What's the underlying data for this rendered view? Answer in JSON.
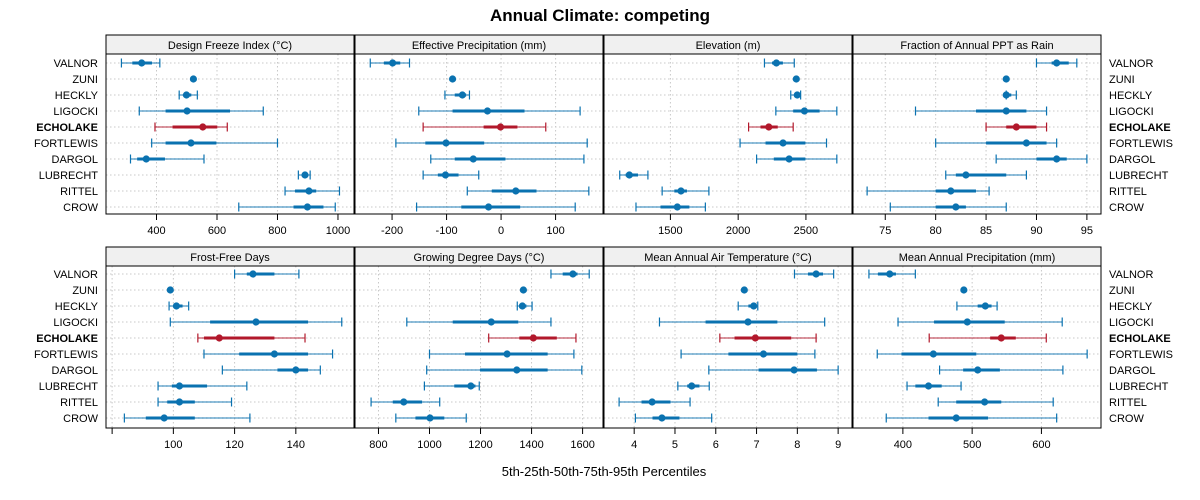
{
  "chart_data": {
    "type": "dotplot-percentiles",
    "title": "Annual Climate: competing",
    "xlabel": "5th-25th-50th-75th-95th Percentiles",
    "sites": [
      "VALNOR",
      "ZUNI",
      "HECKLY",
      "LIGOCKI",
      "ECHOLAKE",
      "FORTLEWIS",
      "DARGOL",
      "LUBRECHT",
      "RITTEL",
      "CROW"
    ],
    "highlight_site": "ECHOLAKE",
    "colors": {
      "default": "#0a72b0",
      "highlight": "#b2182b",
      "strip_fill": "#f0f0f0",
      "grid": "#c8c8c8"
    },
    "grid": true,
    "stat_order": [
      "p5",
      "p25",
      "p50",
      "p75",
      "p95"
    ],
    "panels": [
      {
        "title": "Design Freeze Index (°C)",
        "xlim": [
          233,
          1053
        ],
        "ticks": [
          400,
          600,
          800,
          1000
        ],
        "tick_labels": [
          "400",
          "600",
          "800",
          "1000"
        ],
        "values": [
          [
            284,
            320,
            351,
            385,
            411
          ],
          [
            522,
            522,
            522,
            522,
            522
          ],
          [
            475,
            490,
            499,
            515,
            535
          ],
          [
            343,
            430,
            501,
            643,
            753
          ],
          [
            395,
            453,
            553,
            601,
            634
          ],
          [
            384,
            430,
            514,
            598,
            800
          ],
          [
            314,
            336,
            366,
            428,
            557
          ],
          [
            869,
            883,
            891,
            898,
            908
          ],
          [
            825,
            858,
            904,
            928,
            1005
          ],
          [
            672,
            853,
            899,
            952,
            991
          ]
        ]
      },
      {
        "title": "Effective Precipitation (mm)",
        "xlim": [
          -268,
          187
        ],
        "ticks": [
          -200,
          -100,
          0,
          100
        ],
        "tick_labels": [
          "-200",
          "-100",
          "0",
          "100"
        ],
        "values": [
          [
            -240,
            -215,
            -199,
            -185,
            -168
          ],
          [
            -89,
            -89,
            -89,
            -89,
            -89
          ],
          [
            -103,
            -85,
            -71,
            -64,
            -58
          ],
          [
            -151,
            -89,
            -25,
            43,
            145
          ],
          [
            -143,
            -32,
            -1,
            30,
            82
          ],
          [
            -193,
            -139,
            -101,
            -31,
            158
          ],
          [
            -129,
            -85,
            -51,
            8,
            152
          ],
          [
            -143,
            -116,
            -102,
            -78,
            -41
          ],
          [
            -62,
            -17,
            27,
            65,
            161
          ],
          [
            -155,
            -73,
            -23,
            35,
            136
          ]
        ]
      },
      {
        "title": "Elevation (m)",
        "xlim": [
          1010,
          2840
        ],
        "ticks": [
          1500,
          2000,
          2500
        ],
        "tick_labels": [
          "1500",
          "2000",
          "2500"
        ],
        "values": [
          [
            2194,
            2250,
            2282,
            2330,
            2414
          ],
          [
            2429,
            2429,
            2429,
            2429,
            2429
          ],
          [
            2388,
            2420,
            2436,
            2448,
            2461
          ],
          [
            2278,
            2406,
            2489,
            2601,
            2728
          ],
          [
            2077,
            2165,
            2226,
            2292,
            2406
          ],
          [
            2014,
            2202,
            2331,
            2496,
            2652
          ],
          [
            2136,
            2263,
            2376,
            2496,
            2728
          ],
          [
            1126,
            1170,
            1197,
            1261,
            1334
          ],
          [
            1439,
            1529,
            1578,
            1622,
            1784
          ],
          [
            1246,
            1427,
            1551,
            1640,
            1758
          ]
        ]
      },
      {
        "title": "Fraction of Annual PPT as Rain",
        "xlim": [
          71.8,
          96.4
        ],
        "ticks": [
          75,
          80,
          85,
          90,
          95
        ],
        "tick_labels": [
          "75",
          "80",
          "85",
          "90",
          "95"
        ],
        "values": [
          [
            90,
            91.5,
            92,
            93.2,
            94
          ],
          [
            87,
            87,
            87,
            87,
            87
          ],
          [
            87,
            87,
            87,
            87.5,
            88
          ],
          [
            78,
            84,
            87,
            89,
            91
          ],
          [
            85,
            87,
            88,
            90,
            91
          ],
          [
            80,
            85,
            89,
            91,
            92
          ],
          [
            86,
            90,
            92,
            93,
            95
          ],
          [
            81,
            82,
            83,
            87,
            89
          ],
          [
            73.2,
            80,
            81.5,
            84,
            85.3
          ],
          [
            75.5,
            80,
            82,
            83,
            87
          ]
        ]
      },
      {
        "title": "Frost-Free Days",
        "xlim": [
          78,
          159
        ],
        "ticks": [
          80,
          100,
          120,
          140
        ],
        "tick_labels": [
          "",
          "100",
          "120",
          "140"
        ],
        "values": [
          [
            120,
            124,
            126,
            133,
            141
          ],
          [
            99,
            99,
            99,
            99,
            99
          ],
          [
            98.6,
            100,
            101,
            103,
            105
          ],
          [
            99,
            112,
            127,
            144,
            155
          ],
          [
            108,
            110,
            115,
            133,
            143
          ],
          [
            110,
            121.5,
            133,
            144,
            152
          ],
          [
            116,
            134,
            140,
            144,
            148
          ],
          [
            95,
            99.5,
            102,
            111,
            124
          ],
          [
            95,
            98,
            102,
            107,
            119
          ],
          [
            84,
            91,
            97,
            107,
            125
          ]
        ]
      },
      {
        "title": "Growing Degree Days (°C)",
        "xlim": [
          708,
          1680
        ],
        "ticks": [
          800,
          1000,
          1200,
          1400,
          1600
        ],
        "tick_labels": [
          "800",
          "1000",
          "1200",
          "1400",
          "1600"
        ],
        "values": [
          [
            1476,
            1522,
            1562,
            1580,
            1626
          ],
          [
            1368,
            1368,
            1368,
            1368,
            1368
          ],
          [
            1344,
            1355,
            1364,
            1380,
            1402
          ],
          [
            911,
            1091,
            1242,
            1348,
            1476
          ],
          [
            1232,
            1352,
            1407,
            1499,
            1574
          ],
          [
            1000,
            1139,
            1304,
            1463,
            1566
          ],
          [
            989,
            1198,
            1342,
            1463,
            1597
          ],
          [
            980,
            1097,
            1162,
            1180,
            1195
          ],
          [
            771,
            856,
            899,
            971,
            1040
          ],
          [
            868,
            945,
            1002,
            1058,
            1144
          ]
        ]
      },
      {
        "title": "Mean Annual Air Temperature (°C)",
        "xlim": [
          3.26,
          9.34
        ],
        "ticks": [
          4,
          5,
          6,
          7,
          8,
          9
        ],
        "tick_labels": [
          "4",
          "5",
          "6",
          "7",
          "8",
          "9"
        ],
        "values": [
          [
            7.93,
            8.26,
            8.46,
            8.63,
            8.89
          ],
          [
            6.7,
            6.7,
            6.7,
            6.7,
            6.7
          ],
          [
            6.55,
            6.8,
            6.93,
            6.98,
            7.03
          ],
          [
            4.62,
            5.75,
            6.79,
            7.51,
            8.67
          ],
          [
            6.1,
            6.46,
            6.97,
            7.85,
            8.46
          ],
          [
            5.15,
            6.31,
            7.17,
            8.0,
            8.43
          ],
          [
            5.83,
            7.05,
            7.92,
            8.48,
            9.0
          ],
          [
            5.07,
            5.3,
            5.41,
            5.6,
            5.84
          ],
          [
            3.63,
            4.18,
            4.44,
            4.89,
            5.37
          ],
          [
            4.03,
            4.45,
            4.68,
            5.11,
            5.9
          ]
        ]
      },
      {
        "title": "Mean Annual Precipitation (mm)",
        "xlim": [
          328,
          686
        ],
        "ticks": [
          400,
          500,
          600
        ],
        "tick_labels": [
          "400",
          "500",
          "600"
        ],
        "values": [
          [
            351,
            364,
            381,
            390,
            418
          ],
          [
            488,
            488,
            488,
            488,
            488
          ],
          [
            478,
            508,
            519,
            528,
            536
          ],
          [
            393,
            445,
            493,
            547,
            630
          ],
          [
            438,
            526,
            542,
            563,
            607
          ],
          [
            363,
            398,
            444,
            506,
            666
          ],
          [
            453,
            487,
            508,
            540,
            631
          ],
          [
            406,
            418,
            437,
            456,
            484
          ],
          [
            451,
            477,
            518,
            542,
            617
          ],
          [
            376,
            437,
            477,
            523,
            622
          ]
        ]
      }
    ]
  }
}
